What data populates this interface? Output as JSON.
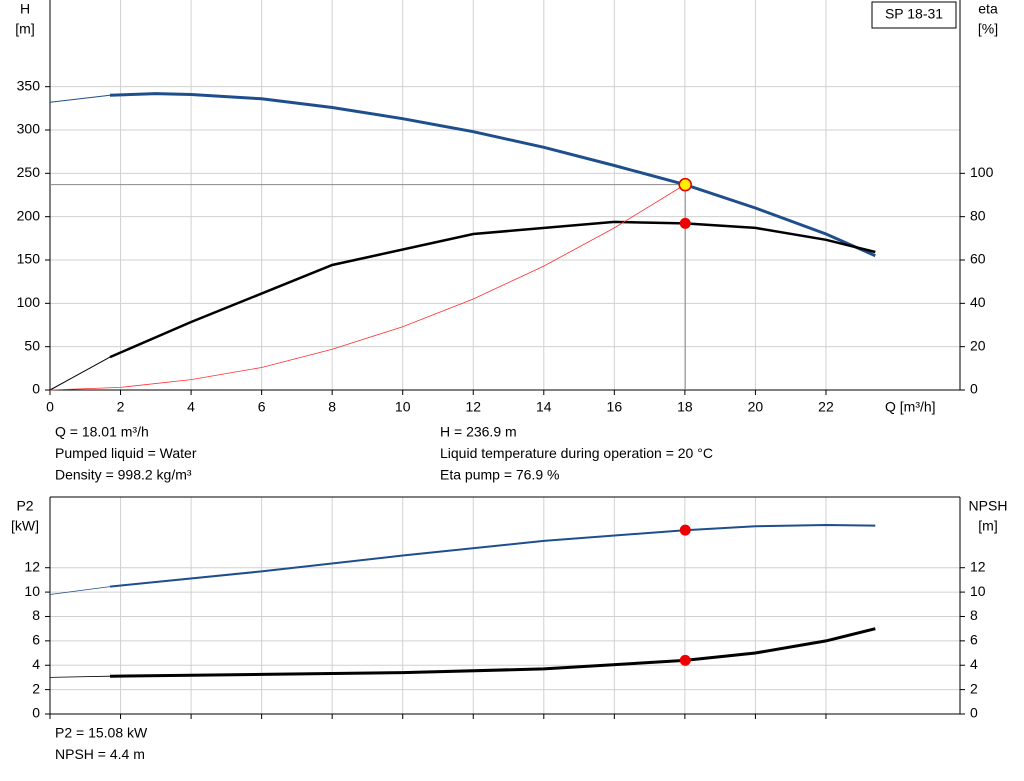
{
  "chart_data": [
    {
      "type": "line",
      "title": "SP 18-31",
      "xlabel": "Q [m³/h]",
      "ylabel": "H",
      "yunit": "[m]",
      "y2label": "eta",
      "y2unit": "[%]",
      "xlim": [
        0,
        25.8
      ],
      "xticks": [
        0,
        2,
        4,
        6,
        8,
        10,
        12,
        14,
        16,
        18,
        20,
        22
      ],
      "ylim": [
        0,
        450
      ],
      "yticks": [
        0,
        50,
        100,
        150,
        200,
        250,
        300,
        350
      ],
      "y2lim": [
        0,
        180
      ],
      "y2ticks": [
        0,
        20,
        40,
        60,
        80,
        100
      ],
      "grid": true,
      "series": [
        {
          "color": "#1f4e8c",
          "width": 1,
          "x": [
            0,
            1.7
          ],
          "values": [
            332,
            340
          ]
        },
        {
          "color": "#1f4e8c",
          "width": 3,
          "x": [
            1.7,
            3,
            4,
            6,
            8,
            10,
            12,
            14,
            16,
            18,
            20,
            22,
            23.4
          ],
          "values": [
            340,
            342,
            341,
            336,
            326,
            313,
            298,
            280,
            259,
            237,
            210,
            180,
            155
          ]
        },
        {
          "color": "#000000",
          "width": 1,
          "axis": "y2",
          "x": [
            0,
            1.7
          ],
          "values": [
            0,
            15.2
          ]
        },
        {
          "color": "#000000",
          "width": 2.5,
          "axis": "y2",
          "x": [
            1.7,
            4,
            8,
            12,
            16,
            18,
            20,
            22,
            23.4
          ],
          "values": [
            15.2,
            31.4,
            57.7,
            72,
            77.6,
            76.9,
            74.8,
            69.3,
            63.7
          ]
        },
        {
          "color": "#ff3030",
          "width": 0.8,
          "x": [
            0,
            2,
            4,
            6,
            8,
            10,
            12,
            14,
            16,
            18
          ],
          "values": [
            0,
            3,
            12,
            26,
            47,
            73,
            105,
            143,
            187,
            237
          ]
        }
      ],
      "point": {
        "x": 18.01,
        "y": 236.9,
        "y2": 76.9
      },
      "info": [
        "Q = 18.01 m³/h",
        "Pumped liquid = Water",
        "Density = 998.2 kg/m³",
        "H = 236.9 m",
        "Liquid temperature during operation = 20 °C",
        "Eta pump = 76.9 %"
      ]
    },
    {
      "type": "line",
      "ylabel": "P2",
      "yunit": "[kW]",
      "y2label": "NPSH",
      "y2unit": "[m]",
      "xlim": [
        0,
        25.8
      ],
      "xticks": [
        0,
        2,
        4,
        6,
        8,
        10,
        12,
        14,
        16,
        18,
        20,
        22
      ],
      "ylim": [
        0,
        17.8
      ],
      "yticks": [
        0,
        2,
        4,
        6,
        8,
        10,
        12
      ],
      "y2lim": [
        0,
        17.8
      ],
      "y2ticks": [
        0,
        2,
        4,
        6,
        8,
        10,
        12
      ],
      "grid": true,
      "series": [
        {
          "color": "#1f4e8c",
          "width": 0.8,
          "x": [
            0,
            1.7
          ],
          "values": [
            9.8,
            10.45
          ]
        },
        {
          "color": "#1f4e8c",
          "width": 2,
          "x": [
            1.7,
            6,
            10,
            14,
            18,
            20,
            22,
            23.4
          ],
          "values": [
            10.45,
            11.7,
            13,
            14.2,
            15.08,
            15.4,
            15.5,
            15.45
          ]
        },
        {
          "color": "#000000",
          "width": 0.8,
          "axis": "y2",
          "x": [
            0,
            1.7
          ],
          "values": [
            3,
            3.1
          ]
        },
        {
          "color": "#000000",
          "width": 3,
          "axis": "y2",
          "x": [
            1.7,
            6,
            10,
            14,
            18,
            20,
            22,
            23.4
          ],
          "values": [
            3.1,
            3.25,
            3.4,
            3.7,
            4.4,
            5,
            6,
            7
          ]
        }
      ],
      "point": {
        "x": 18.01,
        "y": 15.08,
        "y2": 4.4
      },
      "info": [
        "P2 = 15.08 kW",
        "NPSH = 4.4 m"
      ]
    }
  ]
}
